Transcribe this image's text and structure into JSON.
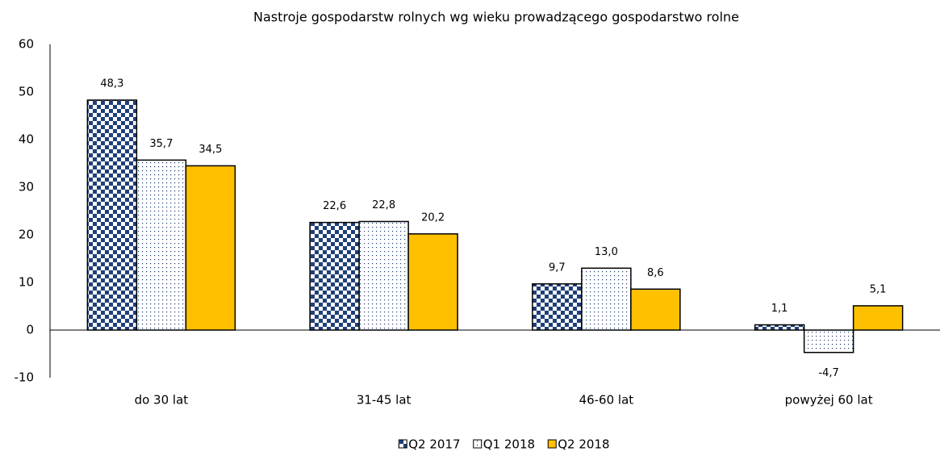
{
  "chart_data": {
    "type": "bar",
    "title": "Nastroje gospodarstw rolnych wg wieku prowadzącego gospodarstwo rolne",
    "categories": [
      "do 30 lat",
      "31-45 lat",
      "46-60 lat",
      "powyżej 60 lat"
    ],
    "series": [
      {
        "name": "Q2 2017",
        "color": "#1f3f7a",
        "pattern": "checker",
        "values": [
          48.3,
          22.6,
          9.7,
          1.1
        ],
        "value_labels": [
          "48,3",
          "22,6",
          "9,7",
          "1,1"
        ]
      },
      {
        "name": "Q1 2018",
        "color": "#1f3f7a",
        "pattern": "dots",
        "values": [
          35.7,
          22.8,
          13.0,
          -4.7
        ],
        "value_labels": [
          "35,7",
          "22,8",
          "13,0",
          "-4,7"
        ]
      },
      {
        "name": "Q2 2018",
        "color": "#ffc000",
        "pattern": "solid",
        "values": [
          34.5,
          20.2,
          8.6,
          5.1
        ],
        "value_labels": [
          "34,5",
          "20,2",
          "8,6",
          "5,1"
        ]
      }
    ],
    "ylim": [
      -10,
      60
    ],
    "yticks": [
      -10,
      0,
      10,
      20,
      30,
      40,
      50,
      60
    ],
    "grid": false,
    "legend": "bottom"
  }
}
